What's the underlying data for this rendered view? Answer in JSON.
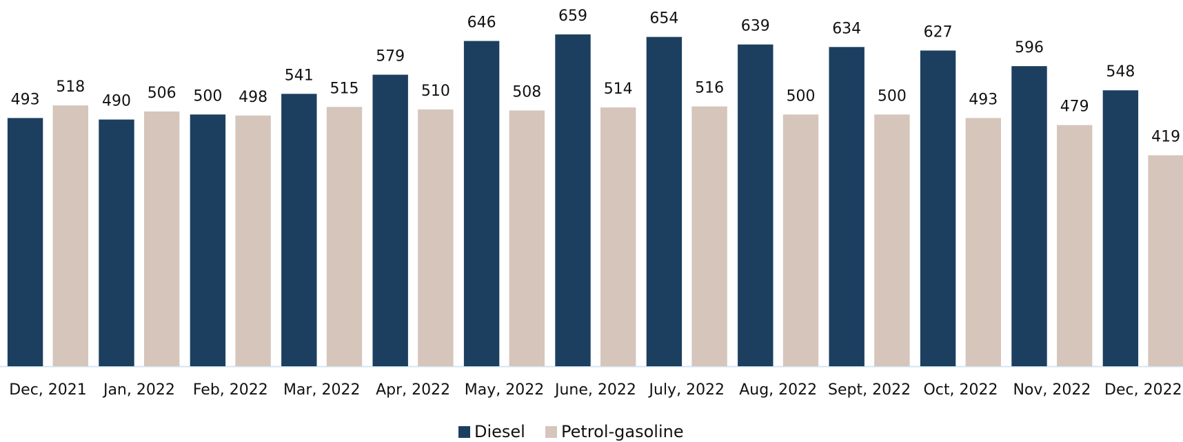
{
  "chart_data": {
    "type": "bar",
    "categories": [
      "Dec, 2021",
      "Jan, 2022",
      "Feb, 2022",
      "Mar, 2022",
      "Apr, 2022",
      "May, 2022",
      "June, 2022",
      "July, 2022",
      "Aug, 2022",
      "Sept, 2022",
      "Oct, 2022",
      "Nov, 2022",
      "Dec, 2022"
    ],
    "series": [
      {
        "name": "Diesel",
        "color": "#1c3f60",
        "values": [
          493,
          490,
          500,
          541,
          579,
          646,
          659,
          654,
          639,
          634,
          627,
          596,
          548
        ]
      },
      {
        "name": "Petrol-gasoline",
        "color": "#d5c5bb",
        "values": [
          518,
          506,
          498,
          515,
          510,
          508,
          514,
          516,
          500,
          500,
          493,
          479,
          419
        ]
      }
    ],
    "legend": "bottom"
  }
}
